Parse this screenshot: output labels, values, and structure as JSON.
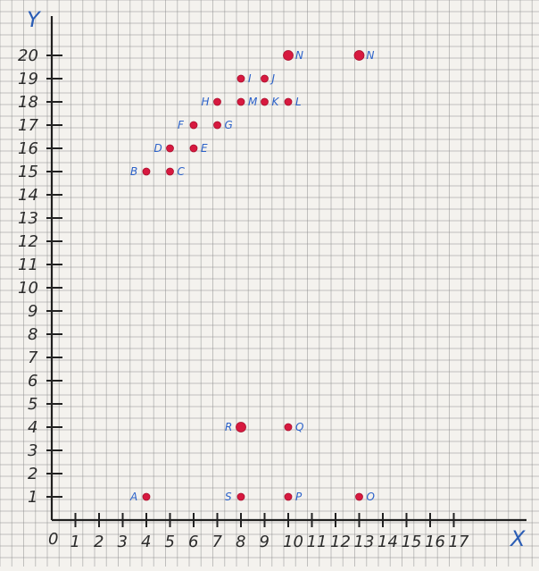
{
  "chart_data": {
    "type": "scatter",
    "x_axis_label": "X",
    "y_axis_label": "Y",
    "origin_label": "0",
    "xlim": [
      0,
      17
    ],
    "ylim": [
      0,
      21
    ],
    "x_ticks": [
      "1",
      "2",
      "3",
      "4",
      "5",
      "6",
      "7",
      "8",
      "9",
      "10",
      "11",
      "12",
      "13",
      "14",
      "15",
      "16",
      "17"
    ],
    "y_ticks": [
      "1",
      "2",
      "3",
      "4",
      "5",
      "6",
      "7",
      "8",
      "9",
      "10",
      "11",
      "12",
      "13",
      "14",
      "15",
      "16",
      "17",
      "18",
      "19",
      "20"
    ],
    "points": [
      {
        "label": "A",
        "x": 4,
        "y": 1
      },
      {
        "label": "S",
        "x": 8,
        "y": 1
      },
      {
        "label": "P",
        "x": 10,
        "y": 1
      },
      {
        "label": "O",
        "x": 13,
        "y": 1
      },
      {
        "label": "R",
        "x": 8,
        "y": 4
      },
      {
        "label": "Q",
        "x": 10,
        "y": 4
      },
      {
        "label": "B",
        "x": 4,
        "y": 15
      },
      {
        "label": "C",
        "x": 5,
        "y": 15
      },
      {
        "label": "D",
        "x": 5,
        "y": 16
      },
      {
        "label": "E",
        "x": 6,
        "y": 16
      },
      {
        "label": "F",
        "x": 6,
        "y": 17
      },
      {
        "label": "G",
        "x": 7,
        "y": 17
      },
      {
        "label": "H",
        "x": 7,
        "y": 18
      },
      {
        "label": "M",
        "x": 8,
        "y": 18
      },
      {
        "label": "K",
        "x": 9,
        "y": 18
      },
      {
        "label": "L",
        "x": 10,
        "y": 18
      },
      {
        "label": "I",
        "x": 8,
        "y": 19
      },
      {
        "label": "J",
        "x": 9,
        "y": 19
      },
      {
        "label": "N",
        "x": 10,
        "y": 20
      },
      {
        "label": "N",
        "x": 13,
        "y": 20
      }
    ]
  }
}
